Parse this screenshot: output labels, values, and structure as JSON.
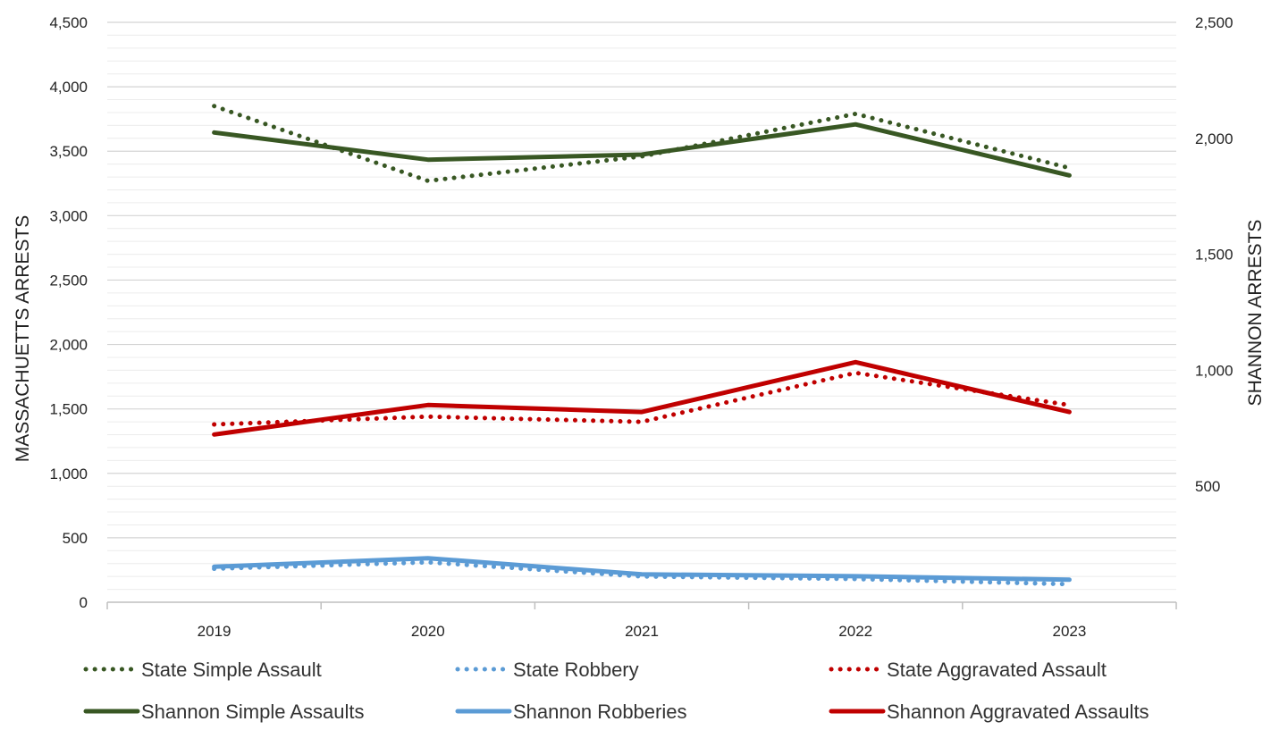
{
  "chart_data": {
    "type": "line",
    "categories": [
      "2019",
      "2020",
      "2021",
      "2022",
      "2023"
    ],
    "y_left": {
      "label": "MASSACHUETTS ARRESTS",
      "range": [
        0,
        4500
      ],
      "ticks": [
        "0",
        "500",
        "1,000",
        "1,500",
        "2,000",
        "2,500",
        "3,000",
        "3,500",
        "4,000",
        "4,500"
      ]
    },
    "y_right": {
      "label": "SHANNON ARRESTS",
      "range": [
        0,
        2500
      ],
      "ticks": [
        "500",
        "1,000",
        "1,500",
        "2,000",
        "2,500"
      ]
    },
    "grid": true,
    "legend_position": "bottom",
    "series": [
      {
        "name": "State Simple Assault",
        "axis": "left",
        "style": "dotted",
        "color": "#385723",
        "values": [
          3850,
          3270,
          3460,
          3790,
          3370
        ]
      },
      {
        "name": "State Robbery",
        "axis": "left",
        "style": "dotted",
        "color": "#5b9bd5",
        "values": [
          260,
          310,
          200,
          180,
          140
        ]
      },
      {
        "name": "State Aggravated Assault",
        "axis": "left",
        "style": "dotted",
        "color": "#c00000",
        "values": [
          1380,
          1440,
          1400,
          1780,
          1530
        ]
      },
      {
        "name": "Shannon Simple Assaults",
        "axis": "right",
        "style": "solid",
        "color": "#385723",
        "values": [
          2025,
          1908,
          1930,
          2060,
          1840
        ]
      },
      {
        "name": "Shannon Robberies",
        "axis": "right",
        "style": "solid",
        "color": "#5b9bd5",
        "values": [
          153,
          190,
          120,
          112,
          97
        ]
      },
      {
        "name": "Shannon Aggravated Assaults",
        "axis": "right",
        "style": "solid",
        "color": "#c00000",
        "values": [
          723,
          850,
          820,
          1035,
          820
        ]
      }
    ]
  }
}
